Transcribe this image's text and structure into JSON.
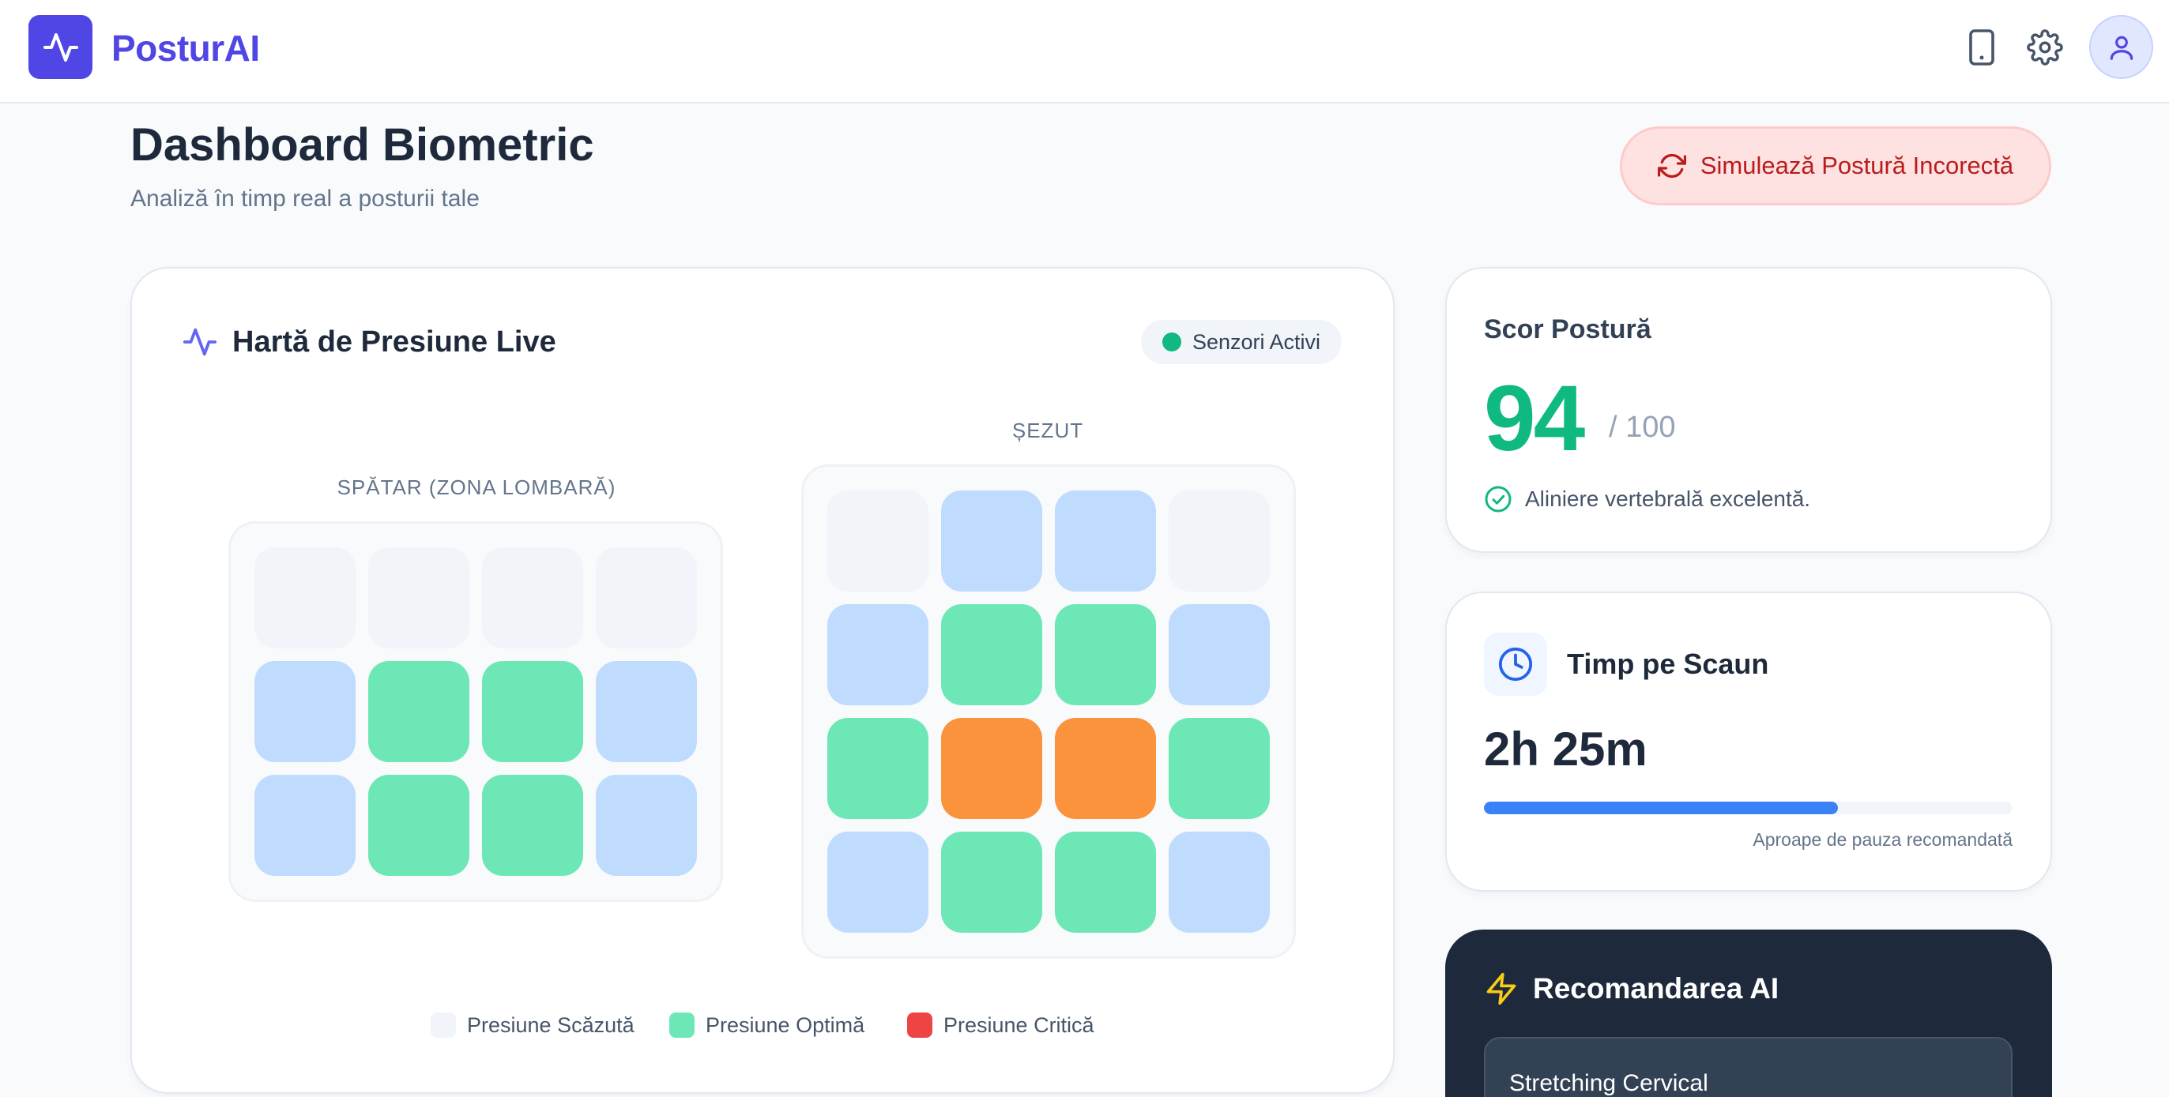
{
  "app": {
    "name": "PosturAI",
    "logo_icon": "pulse-icon"
  },
  "header": {
    "icons": [
      "tablet-icon",
      "gear-icon",
      "user-icon"
    ]
  },
  "page": {
    "title": "Dashboard Biometric",
    "subtitle": "Analiză în timp real a posturii tale",
    "simulate_button": "Simulează Postură Incorectă"
  },
  "pressure_map": {
    "title": "Hartă de Presiune Live",
    "status": "Senzori Activi",
    "status_color": "#10b981",
    "back_zone": {
      "label": "SPĂTAR (ZONA LOMBARĂ)",
      "cells": [
        [
          "low",
          "low",
          "low",
          "low"
        ],
        [
          "blue",
          "optimal",
          "optimal",
          "blue"
        ],
        [
          "blue",
          "optimal",
          "optimal",
          "blue"
        ]
      ]
    },
    "seat_zone": {
      "label": "ȘEZUT",
      "cells": [
        [
          "low",
          "blue",
          "blue",
          "low"
        ],
        [
          "blue",
          "optimal",
          "optimal",
          "blue"
        ],
        [
          "optimal",
          "high",
          "high",
          "optimal"
        ],
        [
          "blue",
          "optimal",
          "optimal",
          "blue"
        ]
      ]
    },
    "legend": [
      {
        "label": "Presiune Scăzută",
        "color": "#f1f5f9"
      },
      {
        "label": "Presiune Optimă",
        "color": "#6ee7b7"
      },
      {
        "label": "Presiune Critică",
        "color": "#ef4444"
      }
    ]
  },
  "score": {
    "title": "Scor Postură",
    "value": "94",
    "max": "/ 100",
    "note": "Aliniere vertebrală excelentă.",
    "color": "#10b981"
  },
  "seat_time": {
    "title": "Timp pe Scaun",
    "value": "2h 25m",
    "progress": 0.67,
    "note": "Aproape de pauza recomandată"
  },
  "ai": {
    "title": "Recomandarea AI",
    "item": "Stretching Cervical"
  }
}
